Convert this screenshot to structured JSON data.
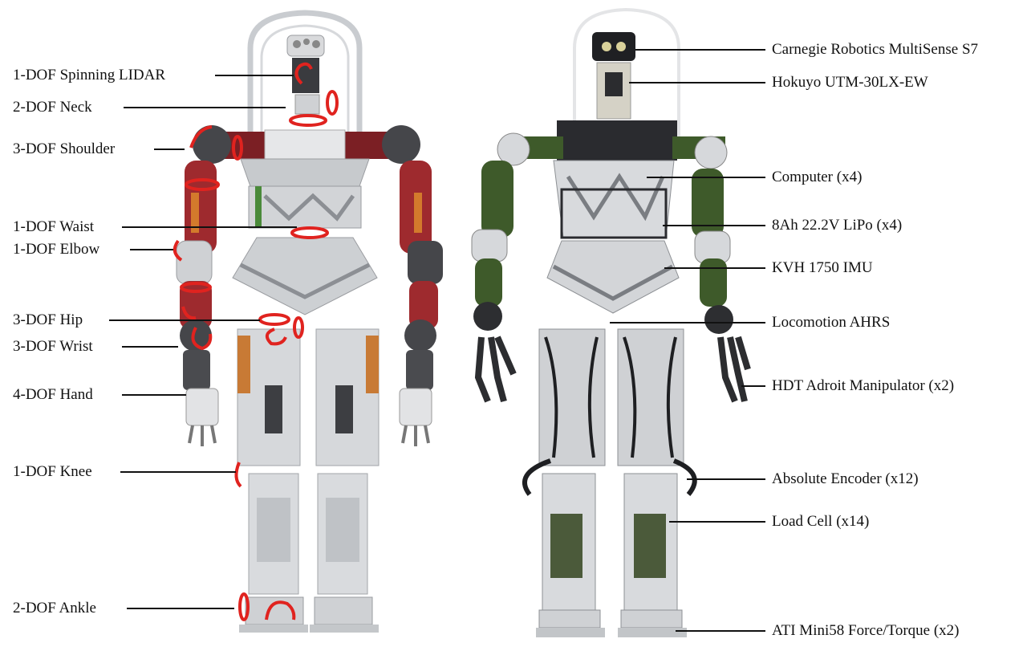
{
  "dof_labels": [
    {
      "id": "lidar",
      "text": "1-DOF Spinning LIDAR"
    },
    {
      "id": "neck",
      "text": "2-DOF Neck"
    },
    {
      "id": "shoulder",
      "text": "3-DOF Shoulder"
    },
    {
      "id": "waist",
      "text": "1-DOF Waist"
    },
    {
      "id": "elbow",
      "text": "1-DOF Elbow"
    },
    {
      "id": "hip",
      "text": "3-DOF Hip"
    },
    {
      "id": "wrist",
      "text": "3-DOF Wrist"
    },
    {
      "id": "hand",
      "text": "4-DOF Hand"
    },
    {
      "id": "knee",
      "text": "1-DOF Knee"
    },
    {
      "id": "ankle",
      "text": "2-DOF Ankle"
    }
  ],
  "component_labels": [
    {
      "id": "multisense",
      "text": "Carnegie Robotics MultiSense S7"
    },
    {
      "id": "hokuyo",
      "text": "Hokuyo UTM-30LX-EW"
    },
    {
      "id": "computer",
      "text": "Computer (x4)"
    },
    {
      "id": "lipo",
      "text": "8Ah 22.2V LiPo (x4)"
    },
    {
      "id": "imu",
      "text": "KVH 1750 IMU"
    },
    {
      "id": "ahrs",
      "text": "Locomotion AHRS"
    },
    {
      "id": "manipulator",
      "text": "HDT Adroit Manipulator (x2)"
    },
    {
      "id": "encoder",
      "text": "Absolute Encoder (x12)"
    },
    {
      "id": "loadcell",
      "text": "Load Cell (x14)"
    },
    {
      "id": "forcetorque",
      "text": "ATI Mini58 Force/Torque (x2)"
    }
  ],
  "colors": {
    "frame": "#c9ccd0",
    "metal": "#b8bcc2",
    "dark": "#2e2f33",
    "red_link": "#a3262b",
    "green_link": "#3e5a2a",
    "arrow": "#e0231f",
    "orange_pad": "#c8772f"
  }
}
